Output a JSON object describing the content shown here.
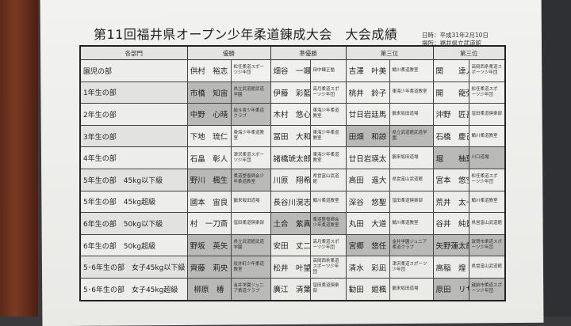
{
  "title": "第11回福井県オープン少年柔道錬成大会　大会成績",
  "date": "日時：平成31年2月10日",
  "venue": "場所：福井県立武道館",
  "headers": [
    "各部門",
    "優勝",
    "準優勝",
    "第三位",
    "第三位"
  ],
  "rows": [
    {
      "category": "園児の部",
      "places": [
        {
          "name": "供村　裕志",
          "club": "松任柔道スポーツ少年団",
          "shaded": false
        },
        {
          "name": "畑谷　一颯",
          "club": "田中錬正塾",
          "shaded": false
        },
        {
          "name": "吉澤　叶美",
          "club": "鯖川柔道教室",
          "shaded": false
        },
        {
          "name": "関　　達人",
          "club": "高岡西条柔道スポーツ少年団",
          "shaded": false
        }
      ]
    },
    {
      "category": "1年生の部",
      "places": [
        {
          "name": "市橋　知宙",
          "club": "県立武道館武道学園",
          "shaded": true
        },
        {
          "name": "伊藤　彩藍",
          "club": "高月柔道スポーツ少年団",
          "shaded": false
        },
        {
          "name": "桃井　鈴子",
          "club": "東海少年柔道教室",
          "shaded": false
        },
        {
          "name": "開　　龍弥",
          "club": "松任柔道スポーツ少年団",
          "shaded": false
        }
      ]
    },
    {
      "category": "2年生の部",
      "places": [
        {
          "name": "中野　心晴",
          "club": "絵斗會少年柔道クラブ",
          "shaded": true
        },
        {
          "name": "木村　悠心",
          "club": "東海少年柔道教室",
          "shaded": false
        },
        {
          "name": "廿日岩廷馬",
          "club": "鶴来坂田道場",
          "shaded": false
        },
        {
          "name": "沖野　匠吾",
          "club": "窪田柔道倶楽部",
          "shaded": false
        }
      ]
    },
    {
      "category": "3年生の部",
      "places": [
        {
          "name": "下地　琉仁",
          "club": "東海少年柔道教室",
          "shaded": false
        },
        {
          "name": "冨田　大和",
          "club": "東海少年柔道教室",
          "shaded": false
        },
        {
          "name": "田畑　和諒",
          "club": "県立武道館武道学園",
          "shaded": true
        },
        {
          "name": "石橋　慶己",
          "club": "鯖川柔道教室",
          "shaded": false
        }
      ]
    },
    {
      "category": "4年生の部",
      "places": [
        {
          "name": "石畠　彰人",
          "club": "津沢柔道スポーツ少年団",
          "shaded": false
        },
        {
          "name": "諸橋琥太郎",
          "club": "東海少年柔道教室",
          "shaded": false
        },
        {
          "name": "廿日岩瑛太",
          "club": "鶴来坂田道場",
          "shaded": false
        },
        {
          "name": "堀　　柚葉",
          "club": "川口道場",
          "shaded": true
        }
      ]
    },
    {
      "category": "5年生の部　45kg以下級",
      "places": [
        {
          "name": "野川　楓生",
          "club": "柔道整復師会少年柔道教室",
          "shaded": true
        },
        {
          "name": "川原　翔希",
          "club": "県営富山武道館",
          "shaded": false
        },
        {
          "name": "高田　遥大",
          "club": "県営富山武道館",
          "shaded": false
        },
        {
          "name": "宮本　悠空",
          "club": "松任柔道スポーツ少年団",
          "shaded": false
        }
      ]
    },
    {
      "category": "5年生の部　45kg超級",
      "places": [
        {
          "name": "國本　宙良",
          "club": "鶴来坂田道場",
          "shaded": false
        },
        {
          "name": "長谷川滉志郎",
          "club": "鯖川柔道教室",
          "shaded": false
        },
        {
          "name": "深谷　悠聖",
          "club": "窪田柔道倶楽部",
          "shaded": false
        },
        {
          "name": "荒井　太一",
          "club": "鯖川柔道教室",
          "shaded": false
        }
      ]
    },
    {
      "category": "6年生の部　50kg以下級",
      "places": [
        {
          "name": "村　一刀斎",
          "club": "窪田柔道倶楽部",
          "shaded": false
        },
        {
          "name": "土合　紫真",
          "club": "柔道整復師会少年柔道教室",
          "shaded": true
        },
        {
          "name": "丸田　大道",
          "club": "鯖川柔道教室",
          "shaded": false
        },
        {
          "name": "谷井　純貴",
          "club": "県営富山武道館",
          "shaded": false
        }
      ]
    },
    {
      "category": "6年生の部　50kg超級",
      "places": [
        {
          "name": "野坂　英矢",
          "club": "県立武道館武道学園",
          "shaded": true
        },
        {
          "name": "安田　丈二",
          "club": "高月柔道スポーツ少年団",
          "shaded": false
        },
        {
          "name": "宮郷　悠任",
          "club": "金井学園ジュニア柔道クラブ",
          "shaded": true
        },
        {
          "name": "矢野蓮太郎",
          "club": "敦賀市柔道スポーツ少年団",
          "shaded": true
        }
      ]
    },
    {
      "category": "5･6年生の部　女子45kg以下級",
      "places": [
        {
          "name": "齊藤　莉央",
          "club": "坂井町少年柔道教室",
          "shaded": true
        },
        {
          "name": "松井　叶望",
          "club": "高岡西条柔道スポーツ少年団",
          "shaded": false
        },
        {
          "name": "清水　彩凪",
          "club": "津沢柔道スポーツ少年団",
          "shaded": false
        },
        {
          "name": "高稲　煌",
          "club": "県営富山武道館",
          "shaded": false
        }
      ]
    },
    {
      "category": "5･6年生の部　女子45kg超級",
      "places": [
        {
          "name": "柳原　椿",
          "club": "金井学園ジュニア柔道クラブ",
          "shaded": true
        },
        {
          "name": "廣江　清葉",
          "club": "窪田柔道倶楽部",
          "shaded": false
        },
        {
          "name": "勧田　姫楓",
          "club": "鶴来坂田道場",
          "shaded": false
        },
        {
          "name": "原田　リサ",
          "club": "越前市柔道スポーツ少年団",
          "shaded": true
        }
      ]
    }
  ]
}
